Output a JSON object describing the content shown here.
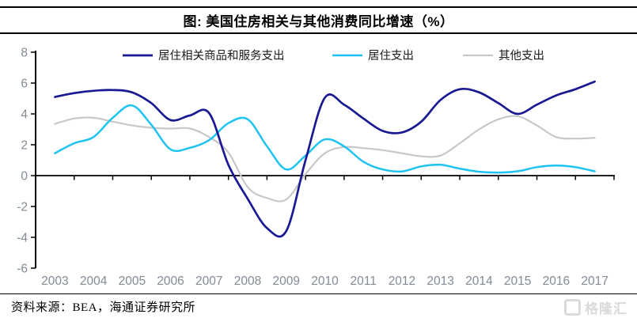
{
  "header": {
    "title": "图: 美国住房相关与其他消费同比增速（%）"
  },
  "footer": {
    "source": "资料来源：BEA，海通证券研究所",
    "watermark": "格隆汇"
  },
  "chart_data": {
    "type": "line",
    "title": "美国住房相关与其他消费同比增速（%）",
    "unit": "%",
    "grid": false,
    "legend_position": "top",
    "axis_color": "#000000",
    "tick_label_color": "#828B96",
    "ylim": [
      -6,
      8
    ],
    "yticks": [
      8,
      6,
      4,
      2,
      0,
      -2,
      -4,
      -6
    ],
    "xticks": [
      2003,
      2004,
      2005,
      2006,
      2007,
      2008,
      2009,
      2010,
      2011,
      2012,
      2013,
      2014,
      2015,
      2016,
      2017
    ],
    "x": [
      2003,
      2003.5,
      2004,
      2004.5,
      2005,
      2005.5,
      2006,
      2006.5,
      2007,
      2007.5,
      2008,
      2008.5,
      2009,
      2009.5,
      2010,
      2010.5,
      2011,
      2011.5,
      2012,
      2012.5,
      2013,
      2013.5,
      2014,
      2014.5,
      2015,
      2015.5,
      2016,
      2016.5,
      2017
    ],
    "series": [
      {
        "name": "居住相关商品和服务支出",
        "color": "#191994",
        "values": [
          5.1,
          5.35,
          5.5,
          5.55,
          5.4,
          4.7,
          3.6,
          3.9,
          4.05,
          0.7,
          -1.5,
          -3.4,
          -3.6,
          1.0,
          5.05,
          4.6,
          3.7,
          2.9,
          2.8,
          3.5,
          4.9,
          5.6,
          5.4,
          4.7,
          4.0,
          4.6,
          5.2,
          5.6,
          6.1
        ]
      },
      {
        "name": "居住支出",
        "color": "#1EC3F2",
        "values": [
          1.45,
          2.1,
          2.5,
          3.75,
          4.55,
          3.3,
          1.7,
          1.8,
          2.3,
          3.4,
          3.65,
          1.9,
          0.4,
          1.3,
          2.35,
          1.9,
          0.9,
          0.4,
          0.27,
          0.6,
          0.7,
          0.45,
          0.25,
          0.2,
          0.28,
          0.55,
          0.65,
          0.55,
          0.28
        ]
      },
      {
        "name": "其他支出",
        "color": "#C8C8C8",
        "values": [
          3.35,
          3.7,
          3.75,
          3.5,
          3.25,
          3.1,
          3.05,
          3.05,
          2.5,
          1.5,
          -0.75,
          -1.45,
          -1.55,
          0.1,
          1.45,
          1.85,
          1.78,
          1.65,
          1.45,
          1.25,
          1.3,
          2.1,
          3.0,
          3.65,
          3.85,
          3.25,
          2.5,
          2.4,
          2.45
        ]
      }
    ]
  }
}
